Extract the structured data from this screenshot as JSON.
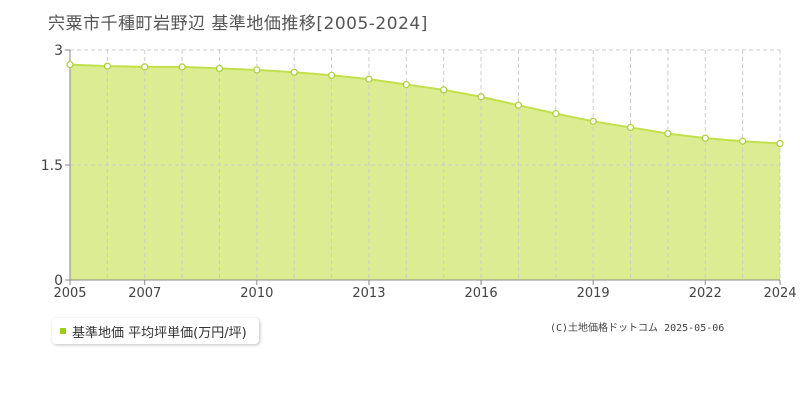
{
  "title": "宍粟市千種町岩野辺 基準地価推移[2005-2024]",
  "legend": {
    "label": "基準地価 平均坪単価(万円/坪)"
  },
  "copyright": "(C)土地価格ドットコム 2025-05-06",
  "colors": {
    "area_fill": "#dcec93",
    "line": "#c2e04c",
    "marker_stroke": "#a9cf3a",
    "marker_fill": "#ffffff",
    "grid": "#cccccc",
    "legend_swatch": "#9ccd1a"
  },
  "chart_data": {
    "type": "area",
    "x": [
      2005,
      2006,
      2007,
      2008,
      2009,
      2010,
      2011,
      2012,
      2013,
      2014,
      2015,
      2016,
      2017,
      2018,
      2019,
      2020,
      2021,
      2022,
      2023,
      2024
    ],
    "series": [
      {
        "name": "基準地価 平均坪単価(万円/坪)",
        "values": [
          2.81,
          2.79,
          2.78,
          2.78,
          2.76,
          2.74,
          2.71,
          2.67,
          2.62,
          2.55,
          2.48,
          2.39,
          2.28,
          2.17,
          2.07,
          1.99,
          1.91,
          1.85,
          1.81,
          1.78
        ]
      }
    ],
    "x_ticks": [
      "2005",
      "2007",
      "2010",
      "2013",
      "2016",
      "2019",
      "2022",
      "2024"
    ],
    "y_ticks": [
      "0",
      "1.5",
      "3"
    ],
    "ylim": [
      0,
      3
    ],
    "grid": true,
    "legend_position": "bottom-left"
  }
}
